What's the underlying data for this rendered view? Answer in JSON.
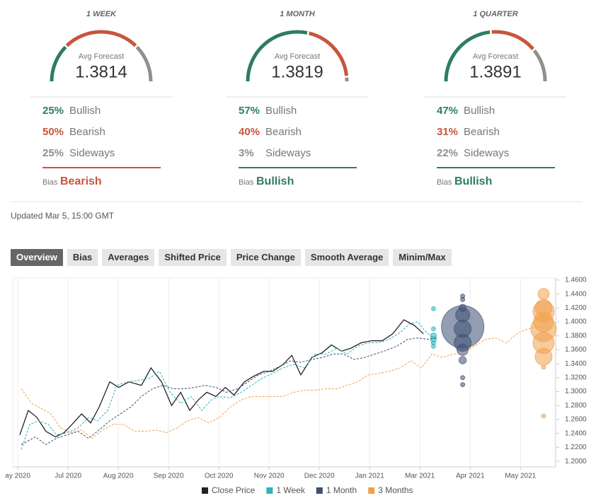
{
  "forecasts": [
    {
      "period": "1 WEEK",
      "gauge_label": "Avg Forecast",
      "average": 1.3814,
      "rows": [
        {
          "value": 25,
          "label": "25%",
          "name": "Bullish",
          "color": "#2e7d5f"
        },
        {
          "value": 50,
          "label": "50%",
          "name": "Bearish",
          "color": "#c8553d"
        },
        {
          "value": 25,
          "label": "25%",
          "name": "Sideways",
          "color": "#8f8f8f"
        }
      ],
      "bias_label": "Bias",
      "bias": "Bearish",
      "bias_color": "#c8553d"
    },
    {
      "period": "1 MONTH",
      "gauge_label": "Avg Forecast",
      "average": 1.3819,
      "rows": [
        {
          "value": 57,
          "label": "57%",
          "name": "Bullish",
          "color": "#2e7d5f"
        },
        {
          "value": 40,
          "label": "40%",
          "name": "Bearish",
          "color": "#c8553d"
        },
        {
          "value": 3,
          "label": "3%",
          "name": "Sideways",
          "color": "#8f8f8f"
        }
      ],
      "bias_label": "Bias",
      "bias": "Bullish",
      "bias_color": "#2e7d5f"
    },
    {
      "period": "1 QUARTER",
      "gauge_label": "Avg Forecast",
      "average": 1.3891,
      "rows": [
        {
          "value": 47,
          "label": "47%",
          "name": "Bullish",
          "color": "#2e7d5f"
        },
        {
          "value": 31,
          "label": "31%",
          "name": "Bearish",
          "color": "#c8553d"
        },
        {
          "value": 22,
          "label": "22%",
          "name": "Sideways",
          "color": "#8f8f8f"
        }
      ],
      "bias_label": "Bias",
      "bias": "Bullish",
      "bias_color": "#2e7d5f"
    }
  ],
  "updated": "Updated Mar 5, 15:00 GMT",
  "tabs": [
    "Overview",
    "Bias",
    "Averages",
    "Shifted Price",
    "Price Change",
    "Smooth Average",
    "Minim/Max"
  ],
  "active_tab": 0,
  "chart_data": {
    "type": "line",
    "xlim": [
      -0.1,
      10.7
    ],
    "xticks": [
      {
        "value": 0,
        "label": "ay 2020"
      },
      {
        "value": 1,
        "label": "Jul 2020"
      },
      {
        "value": 2,
        "label": "Aug 2020"
      },
      {
        "value": 3,
        "label": "Sep 2020"
      },
      {
        "value": 4,
        "label": "Oct 2020"
      },
      {
        "value": 5,
        "label": "Nov 2020"
      },
      {
        "value": 6,
        "label": "Dec 2020"
      },
      {
        "value": 7,
        "label": "Jan 2021"
      },
      {
        "value": 8,
        "label": "Mar 2021"
      },
      {
        "value": 9,
        "label": "Apr 2021"
      },
      {
        "value": 10,
        "label": "May 2021"
      }
    ],
    "ylim": [
      1.192,
      1.463
    ],
    "yticks": [
      {
        "value": 1.46,
        "label": "1.4600"
      },
      {
        "value": 1.44,
        "label": "1.4400"
      },
      {
        "value": 1.42,
        "label": "1.4200"
      },
      {
        "value": 1.4,
        "label": "1.4000"
      },
      {
        "value": 1.38,
        "label": "1.3800"
      },
      {
        "value": 1.36,
        "label": "1.3600"
      },
      {
        "value": 1.34,
        "label": "1.3400"
      },
      {
        "value": 1.32,
        "label": "1.3200"
      },
      {
        "value": 1.3,
        "label": "1.3000"
      },
      {
        "value": 1.28,
        "label": "1.2800"
      },
      {
        "value": 1.26,
        "label": "1.2600"
      },
      {
        "value": 1.24,
        "label": "1.2400"
      },
      {
        "value": 1.22,
        "label": "1.2200"
      },
      {
        "value": 1.2,
        "label": "1.2000"
      }
    ],
    "grid": true,
    "series": [
      {
        "name": "Close Price",
        "color": "#222222",
        "dashed": false,
        "x": [
          0.04,
          0.21,
          0.38,
          0.56,
          0.75,
          0.92,
          1.08,
          1.27,
          1.45,
          1.62,
          1.83,
          2.01,
          2.21,
          2.46,
          2.65,
          2.86,
          3.06,
          3.24,
          3.42,
          3.59,
          3.76,
          3.94,
          4.13,
          4.3,
          4.51,
          4.69,
          4.89,
          5.07,
          5.28,
          5.45,
          5.63,
          5.85,
          6.06,
          6.24,
          6.44,
          6.62,
          6.83,
          7.04,
          7.25,
          7.46,
          7.68,
          7.89,
          8.07
        ],
        "values": [
          1.238,
          1.273,
          1.263,
          1.243,
          1.235,
          1.241,
          1.253,
          1.268,
          1.255,
          1.278,
          1.314,
          1.306,
          1.314,
          1.309,
          1.334,
          1.314,
          1.28,
          1.299,
          1.273,
          1.288,
          1.299,
          1.293,
          1.306,
          1.295,
          1.314,
          1.322,
          1.329,
          1.329,
          1.339,
          1.352,
          1.324,
          1.349,
          1.356,
          1.367,
          1.358,
          1.362,
          1.37,
          1.373,
          1.373,
          1.383,
          1.403,
          1.395,
          1.383
        ]
      },
      {
        "name": "1 Week",
        "color": "#2bb5b8",
        "dashed": true,
        "x": [
          0.07,
          0.24,
          0.42,
          0.61,
          0.77,
          0.99,
          1.2,
          1.41,
          1.59,
          1.79,
          1.97,
          2.18,
          2.39,
          2.61,
          2.82,
          3.03,
          3.24,
          3.45,
          3.66,
          3.85,
          4.01,
          4.23,
          4.44,
          4.65,
          4.86,
          5.07,
          5.28,
          5.49,
          5.7,
          5.92,
          6.13,
          6.34,
          6.55,
          6.76,
          6.97,
          7.18,
          7.39,
          7.61,
          7.79,
          7.96,
          8.1,
          8.27
        ],
        "values": [
          1.217,
          1.253,
          1.258,
          1.253,
          1.238,
          1.241,
          1.248,
          1.263,
          1.258,
          1.273,
          1.309,
          1.314,
          1.316,
          1.319,
          1.329,
          1.299,
          1.283,
          1.293,
          1.273,
          1.288,
          1.293,
          1.291,
          1.299,
          1.309,
          1.319,
          1.326,
          1.334,
          1.339,
          1.334,
          1.354,
          1.354,
          1.362,
          1.354,
          1.365,
          1.37,
          1.37,
          1.375,
          1.385,
          1.397,
          1.4,
          1.387,
          1.377
        ],
        "bubble_x": 8.27,
        "bubble_values": [
          1.419,
          1.39,
          1.38,
          1.375,
          1.37,
          1.365
        ],
        "bubble_sizes": [
          1,
          1,
          2,
          2,
          1,
          1
        ]
      },
      {
        "name": "1 Month",
        "color": "#3d4f73",
        "dashed": true,
        "x": [
          0.07,
          0.35,
          0.56,
          0.77,
          0.99,
          1.2,
          1.41,
          1.62,
          1.83,
          2.04,
          2.25,
          2.46,
          2.68,
          2.89,
          3.1,
          3.31,
          3.52,
          3.73,
          3.94,
          4.15,
          4.37,
          4.58,
          4.79,
          5,
          5.21,
          5.42,
          5.63,
          5.85,
          6.06,
          6.27,
          6.48,
          6.69,
          6.9,
          7.11,
          7.32,
          7.54,
          7.75,
          7.96,
          8.17,
          8.35
        ],
        "values": [
          1.224,
          1.235,
          1.224,
          1.233,
          1.238,
          1.243,
          1.233,
          1.245,
          1.258,
          1.268,
          1.278,
          1.293,
          1.304,
          1.309,
          1.304,
          1.304,
          1.306,
          1.309,
          1.306,
          1.299,
          1.304,
          1.314,
          1.324,
          1.329,
          1.336,
          1.344,
          1.342,
          1.346,
          1.349,
          1.354,
          1.354,
          1.346,
          1.349,
          1.354,
          1.359,
          1.365,
          1.375,
          1.377,
          1.375,
          1.377
        ],
        "bubble_x": 8.85,
        "bubble_values": [
          1.437,
          1.432,
          1.42,
          1.41,
          1.393,
          1.39,
          1.37,
          1.36,
          1.345,
          1.32,
          1.31
        ],
        "bubble_sizes": [
          1,
          1,
          3,
          11,
          100,
          16,
          16,
          7,
          3,
          1,
          1
        ]
      },
      {
        "name": "3 Months",
        "color": "#f0a04b",
        "dashed": true,
        "x": [
          0.07,
          0.28,
          0.49,
          0.66,
          0.85,
          1.06,
          1.27,
          1.48,
          1.69,
          1.9,
          2.11,
          2.32,
          2.54,
          2.75,
          2.96,
          3.17,
          3.38,
          3.59,
          3.8,
          4.01,
          4.23,
          4.44,
          4.65,
          4.86,
          5.07,
          5.28,
          5.49,
          5.7,
          5.92,
          6.13,
          6.34,
          6.55,
          6.76,
          6.97,
          7.18,
          7.39,
          7.61,
          7.82,
          8.03,
          8.24,
          8.45,
          8.66,
          8.87,
          9.08,
          9.3,
          9.51,
          9.72,
          9.93,
          10.14,
          10.35,
          10.56
        ],
        "values": [
          1.304,
          1.283,
          1.275,
          1.268,
          1.248,
          1.241,
          1.245,
          1.233,
          1.245,
          1.253,
          1.253,
          1.243,
          1.243,
          1.245,
          1.241,
          1.248,
          1.258,
          1.263,
          1.255,
          1.263,
          1.278,
          1.288,
          1.293,
          1.293,
          1.293,
          1.293,
          1.299,
          1.302,
          1.302,
          1.304,
          1.304,
          1.309,
          1.314,
          1.324,
          1.326,
          1.329,
          1.334,
          1.344,
          1.334,
          1.354,
          1.349,
          1.354,
          1.354,
          1.365,
          1.375,
          1.377,
          1.37,
          1.383,
          1.39,
          1.393,
          1.39
        ],
        "bubble_x": 10.46,
        "bubble_values": [
          1.44,
          1.42,
          1.415,
          1.4,
          1.39,
          1.37,
          1.35,
          1.335,
          1.265
        ],
        "bubble_sizes": [
          7,
          16,
          25,
          22,
          36,
          25,
          16,
          1,
          1
        ]
      }
    ]
  }
}
